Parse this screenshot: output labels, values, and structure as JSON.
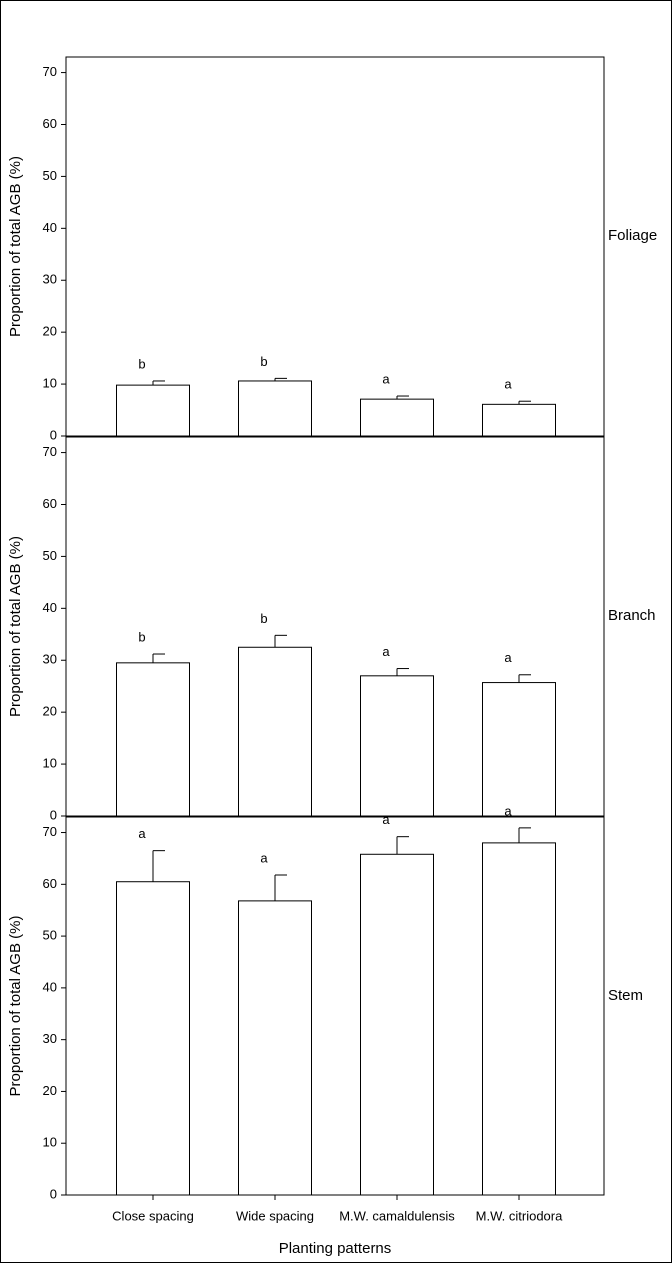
{
  "chart_data": [
    {
      "type": "bar",
      "label": "Foliage",
      "ylabel": "Proportion of total AGB (%)",
      "values": [
        9.8,
        10.6,
        7.1,
        6.1
      ],
      "errors": [
        0.8,
        0.5,
        0.6,
        0.6
      ],
      "annotations": [
        "b",
        "b",
        "a",
        "a"
      ],
      "color": "#ffffff",
      "ylim": [
        0,
        73
      ],
      "yticks": [
        0,
        10,
        20,
        30,
        40,
        50,
        60,
        70
      ]
    },
    {
      "type": "bar",
      "label": "Branch",
      "ylabel": "Proportion of total AGB (%)",
      "values": [
        29.5,
        32.5,
        27.0,
        25.7
      ],
      "errors": [
        1.7,
        2.3,
        1.4,
        1.5
      ],
      "annotations": [
        "b",
        "b",
        "a",
        "a"
      ],
      "color": "#ffffff",
      "ylim": [
        0,
        73
      ],
      "yticks": [
        0,
        10,
        20,
        30,
        40,
        50,
        60,
        70
      ]
    },
    {
      "type": "bar",
      "label": "Stem",
      "ylabel": "Proportion of total AGB (%)",
      "xlabel": "Planting patterns",
      "categories": [
        "Close spacing",
        "Wide spacing",
        "M.W. camaldulensis",
        "M.W. citriodora"
      ],
      "values": [
        60.5,
        56.8,
        65.8,
        68.0
      ],
      "errors": [
        6.0,
        5.0,
        3.4,
        2.9
      ],
      "annotations": [
        "a",
        "a",
        "a",
        "a"
      ],
      "color": "#ffffff",
      "ylim": [
        0,
        73
      ],
      "yticks": [
        0,
        10,
        20,
        30,
        40,
        50,
        60,
        70
      ]
    }
  ]
}
